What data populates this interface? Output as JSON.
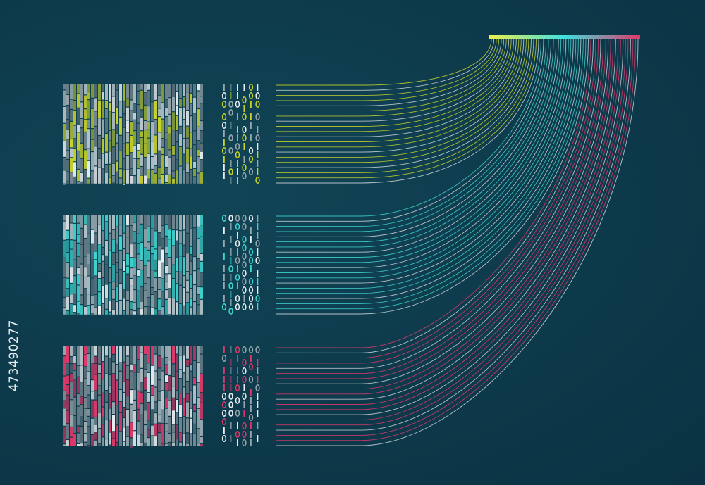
{
  "stock_id": "473490277",
  "palette": {
    "background": "#0d3a4b",
    "yellow": "#c9d32a",
    "cyan": "#3fd6d0",
    "pink": "#e0386a",
    "white": "#e9eef0",
    "grey": "#9aa7ad",
    "slate": "#5f7580"
  },
  "panels": [
    {
      "name": "yellow",
      "accent": "#c9d32a"
    },
    {
      "name": "cyan",
      "accent": "#3fd6d0"
    },
    {
      "name": "pink",
      "accent": "#e0386a"
    }
  ],
  "gradient_bar_colors": [
    "#f0f04a",
    "#3fe0e0",
    "#e0386a"
  ]
}
